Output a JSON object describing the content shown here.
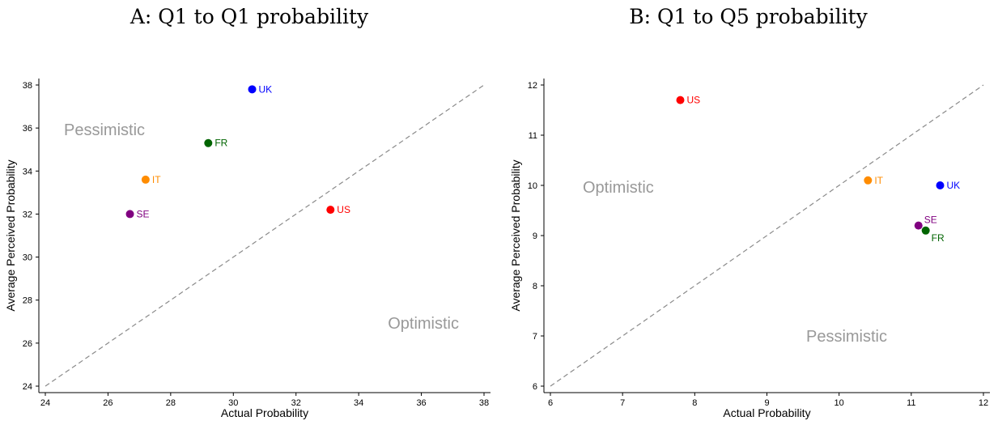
{
  "chart_data": [
    {
      "type": "scatter",
      "title": "A: Q1 to Q1 probability",
      "xlabel": "Actual Probability",
      "ylabel": "Average Perceived Probability",
      "xlim": [
        24,
        38
      ],
      "ylim": [
        24,
        38
      ],
      "xticks": [
        "24",
        "26",
        "28",
        "30",
        "32",
        "34",
        "36",
        "38"
      ],
      "yticks": [
        "24",
        "26",
        "28",
        "30",
        "32",
        "34",
        "36",
        "38"
      ],
      "diagonal": true,
      "grid": false,
      "regions": [
        {
          "label": "Pessimistic",
          "position": "upper-left"
        },
        {
          "label": "Optimistic",
          "position": "lower-right"
        }
      ],
      "points": [
        {
          "label": "UK",
          "x": 30.6,
          "y": 37.8,
          "color": "#0000ff"
        },
        {
          "label": "FR",
          "x": 29.2,
          "y": 35.3,
          "color": "#006400"
        },
        {
          "label": "IT",
          "x": 27.2,
          "y": 33.6,
          "color": "#ff8c00"
        },
        {
          "label": "SE",
          "x": 26.7,
          "y": 32.0,
          "color": "#800080"
        },
        {
          "label": "US",
          "x": 33.1,
          "y": 32.2,
          "color": "#ff0000"
        }
      ]
    },
    {
      "type": "scatter",
      "title": "B: Q1 to Q5 probability",
      "xlabel": "Actual Probability",
      "ylabel": "Average Perceived Probability",
      "xlim": [
        6,
        12
      ],
      "ylim": [
        6,
        12
      ],
      "xticks": [
        "6",
        "7",
        "8",
        "9",
        "10",
        "11",
        "12"
      ],
      "yticks": [
        "6",
        "7",
        "8",
        "9",
        "10",
        "11",
        "12"
      ],
      "diagonal": true,
      "grid": false,
      "regions": [
        {
          "label": "Optimistic",
          "position": "upper-left"
        },
        {
          "label": "Pessimistic",
          "position": "lower-right"
        }
      ],
      "points": [
        {
          "label": "US",
          "x": 7.8,
          "y": 11.7,
          "color": "#ff0000"
        },
        {
          "label": "IT",
          "x": 10.4,
          "y": 10.1,
          "color": "#ff8c00"
        },
        {
          "label": "UK",
          "x": 11.4,
          "y": 10.0,
          "color": "#0000ff"
        },
        {
          "label": "SE",
          "x": 11.1,
          "y": 9.2,
          "color": "#800080"
        },
        {
          "label": "FR",
          "x": 11.2,
          "y": 9.1,
          "color": "#006400"
        }
      ]
    }
  ]
}
